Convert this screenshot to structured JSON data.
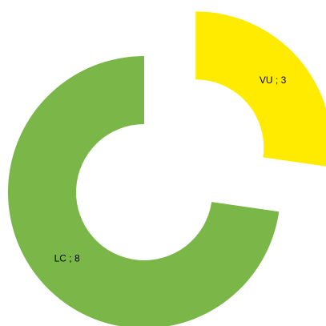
{
  "chart_data": {
    "type": "donut",
    "categories": [
      "VU",
      "LC"
    ],
    "values": [
      3,
      8
    ],
    "value_labels": [
      "VU ; 3",
      "LC ; 8"
    ],
    "colors": [
      "#ffeb00",
      "#7ab648"
    ],
    "exploded": [
      true,
      false
    ]
  }
}
